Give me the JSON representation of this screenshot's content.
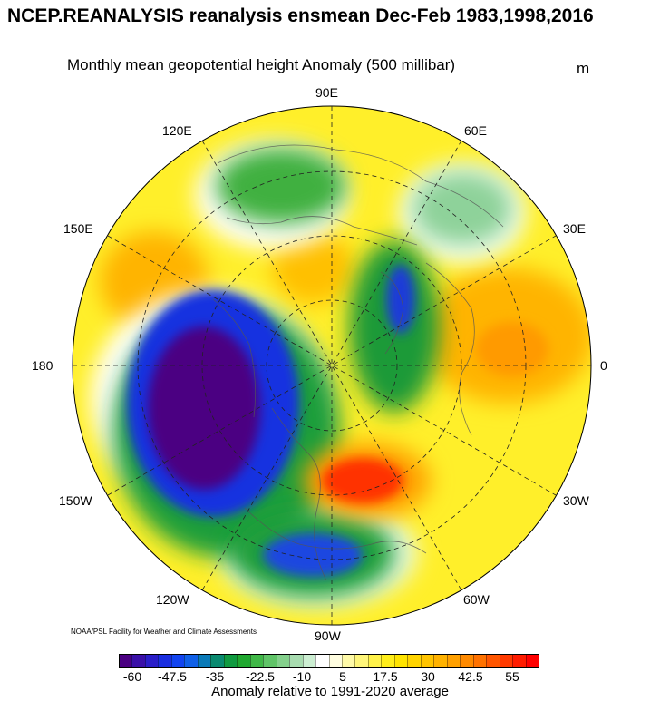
{
  "title": "NCEP.REANALYSIS reanalysis ensmean Dec-Feb 1983,1998,2016",
  "subtitle": "Monthly mean geopotential height Anomaly (500 millibar)",
  "units": "m",
  "longitude_labels": [
    "90E",
    "120E",
    "60E",
    "150E",
    "30E",
    "180",
    "0",
    "150W",
    "30W",
    "120W",
    "60W",
    "90W"
  ],
  "credit": "NOAA/PSL Facility for Weather and Climate Assessments",
  "colorbar": {
    "tick_labels": [
      "-60",
      "-47.5",
      "-35",
      "-22.5",
      "-10",
      "5",
      "17.5",
      "30",
      "42.5",
      "55"
    ],
    "caption": "Anomaly relative to 1991-2020 average",
    "colors": [
      "#4b0082",
      "#3a10a8",
      "#2a1ec8",
      "#1a2ee0",
      "#1244f0",
      "#1060e8",
      "#0a7ab8",
      "#0a8a70",
      "#109a40",
      "#20a830",
      "#40b848",
      "#60c468",
      "#84d08c",
      "#a8dcb0",
      "#cceed2",
      "#ffffff",
      "#fffde0",
      "#fffaa8",
      "#fff67a",
      "#fff24a",
      "#ffee1a",
      "#ffe400",
      "#ffd400",
      "#ffc400",
      "#ffb200",
      "#ffa000",
      "#ff8a00",
      "#ff7200",
      "#ff5600",
      "#ff3a00",
      "#ff1c00",
      "#ff0000"
    ]
  }
}
